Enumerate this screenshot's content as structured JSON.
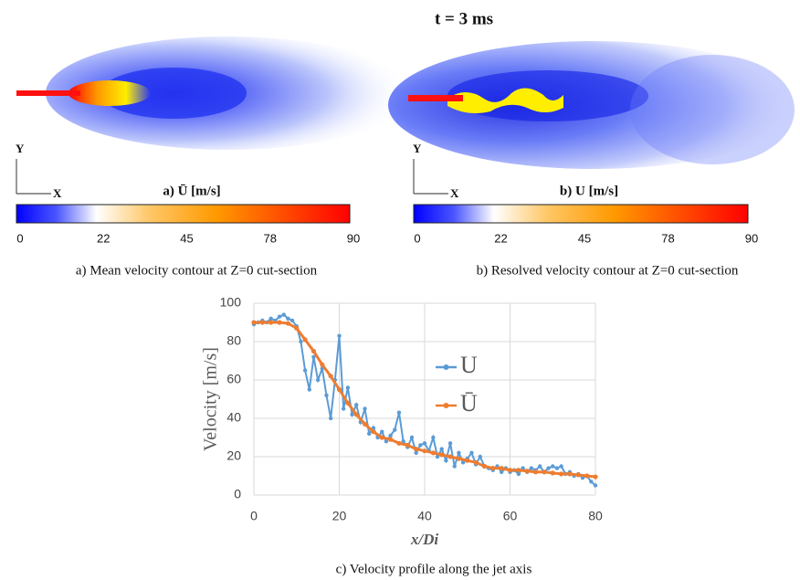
{
  "title": "t = 3 ms",
  "panels": [
    {
      "label": "a) Ū [m/s]",
      "axis_y": "Y",
      "axis_x": "X",
      "colorbar_ticks": [
        "0",
        "22",
        "45",
        "78",
        "90"
      ],
      "caption": "a) Mean velocity contour at Z=0 cut-section"
    },
    {
      "label": "b) U [m/s]",
      "axis_y": "Y",
      "axis_x": "X",
      "colorbar_ticks": [
        "0",
        "22",
        "45",
        "78",
        "90"
      ],
      "caption": "b) Resolved velocity contour at Z=0 cut-section"
    }
  ],
  "chart_data": {
    "type": "line",
    "caption": "c) Velocity profile along the jet axis",
    "x_label": "x/Di",
    "y_label": "Velocity [m/s]",
    "xlim": [
      0,
      80
    ],
    "xticks": [
      0,
      20,
      40,
      60,
      80
    ],
    "ylim": [
      0,
      100
    ],
    "yticks": [
      0,
      20,
      40,
      60,
      80,
      100
    ],
    "grid": true,
    "series": [
      {
        "name": "U",
        "color": "#5b9bd5",
        "x": [
          0,
          1,
          2,
          3,
          4,
          5,
          6,
          7,
          8,
          9,
          10,
          11,
          12,
          13,
          14,
          15,
          16,
          17,
          18,
          19,
          20,
          21,
          22,
          23,
          24,
          25,
          26,
          27,
          28,
          29,
          30,
          31,
          32,
          33,
          34,
          35,
          36,
          37,
          38,
          39,
          40,
          41,
          42,
          43,
          44,
          45,
          46,
          47,
          48,
          49,
          50,
          51,
          52,
          53,
          54,
          55,
          56,
          57,
          58,
          59,
          60,
          61,
          62,
          63,
          64,
          65,
          66,
          67,
          68,
          69,
          70,
          71,
          72,
          73,
          74,
          75,
          76,
          77,
          78,
          79,
          80
        ],
        "values": [
          89,
          90,
          91,
          90,
          92,
          91,
          93,
          94,
          92,
          91,
          88,
          80,
          65,
          55,
          72,
          60,
          66,
          52,
          40,
          60,
          83,
          45,
          56,
          42,
          47,
          38,
          45,
          32,
          35,
          30,
          33,
          28,
          31,
          34,
          43,
          28,
          25,
          30,
          22,
          26,
          27,
          23,
          30,
          20,
          24,
          18,
          27,
          15,
          22,
          17,
          19,
          22,
          16,
          20,
          15,
          14,
          13,
          15,
          12,
          14,
          12,
          13,
          11,
          14,
          12,
          14,
          13,
          15,
          12,
          14,
          15,
          14,
          15,
          11,
          12,
          10,
          11,
          9,
          10,
          7,
          5
        ]
      },
      {
        "name": "Ū",
        "color": "#ed7d31",
        "x": [
          0,
          2,
          4,
          6,
          8,
          10,
          12,
          14,
          16,
          18,
          20,
          22,
          24,
          26,
          28,
          30,
          32,
          34,
          36,
          38,
          40,
          42,
          44,
          46,
          48,
          50,
          52,
          54,
          56,
          58,
          60,
          62,
          64,
          66,
          68,
          70,
          72,
          74,
          76,
          78,
          80
        ],
        "values": [
          90,
          90,
          90,
          90,
          89.5,
          87,
          81,
          75,
          68,
          62,
          55,
          48,
          42,
          37,
          33,
          30,
          29,
          27,
          26,
          24,
          23,
          22,
          21,
          20,
          19,
          18,
          17,
          15,
          14,
          14,
          13,
          13,
          12.5,
          12,
          12,
          11.5,
          11,
          11,
          10.5,
          10,
          9.5
        ]
      }
    ]
  }
}
